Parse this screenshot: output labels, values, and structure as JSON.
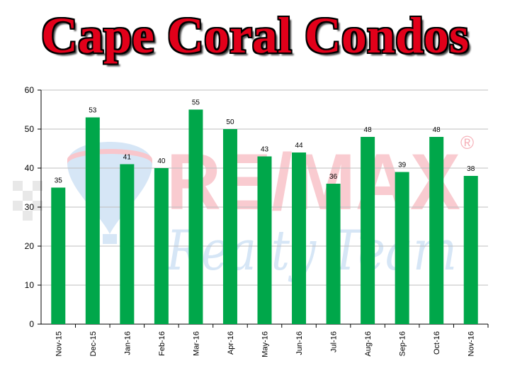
{
  "title": "Cape Coral Condos",
  "watermark": {
    "brand_text": "RE/MAX",
    "registered_mark": "®",
    "script_text": "Realty Team"
  },
  "colors": {
    "bar": "#00a74a",
    "title": "#e2001a",
    "grid": "#bfbfbf"
  },
  "chart_data": {
    "type": "bar",
    "categories": [
      "Nov-15",
      "Dec-15",
      "Jan-16",
      "Feb-16",
      "Mar-16",
      "Apr-16",
      "May-16",
      "Jun-16",
      "Jul-16",
      "Aug-16",
      "Sep-16",
      "Oct-16",
      "Nov-16"
    ],
    "values": [
      35,
      53,
      41,
      40,
      55,
      50,
      43,
      44,
      36,
      48,
      39,
      48,
      38
    ],
    "title": "Cape Coral Condos",
    "xlabel": "",
    "ylabel": "",
    "ylim": [
      0,
      60
    ],
    "yticks": [
      0,
      10,
      20,
      30,
      40,
      50,
      60
    ],
    "grid": true,
    "data_labels": true
  }
}
